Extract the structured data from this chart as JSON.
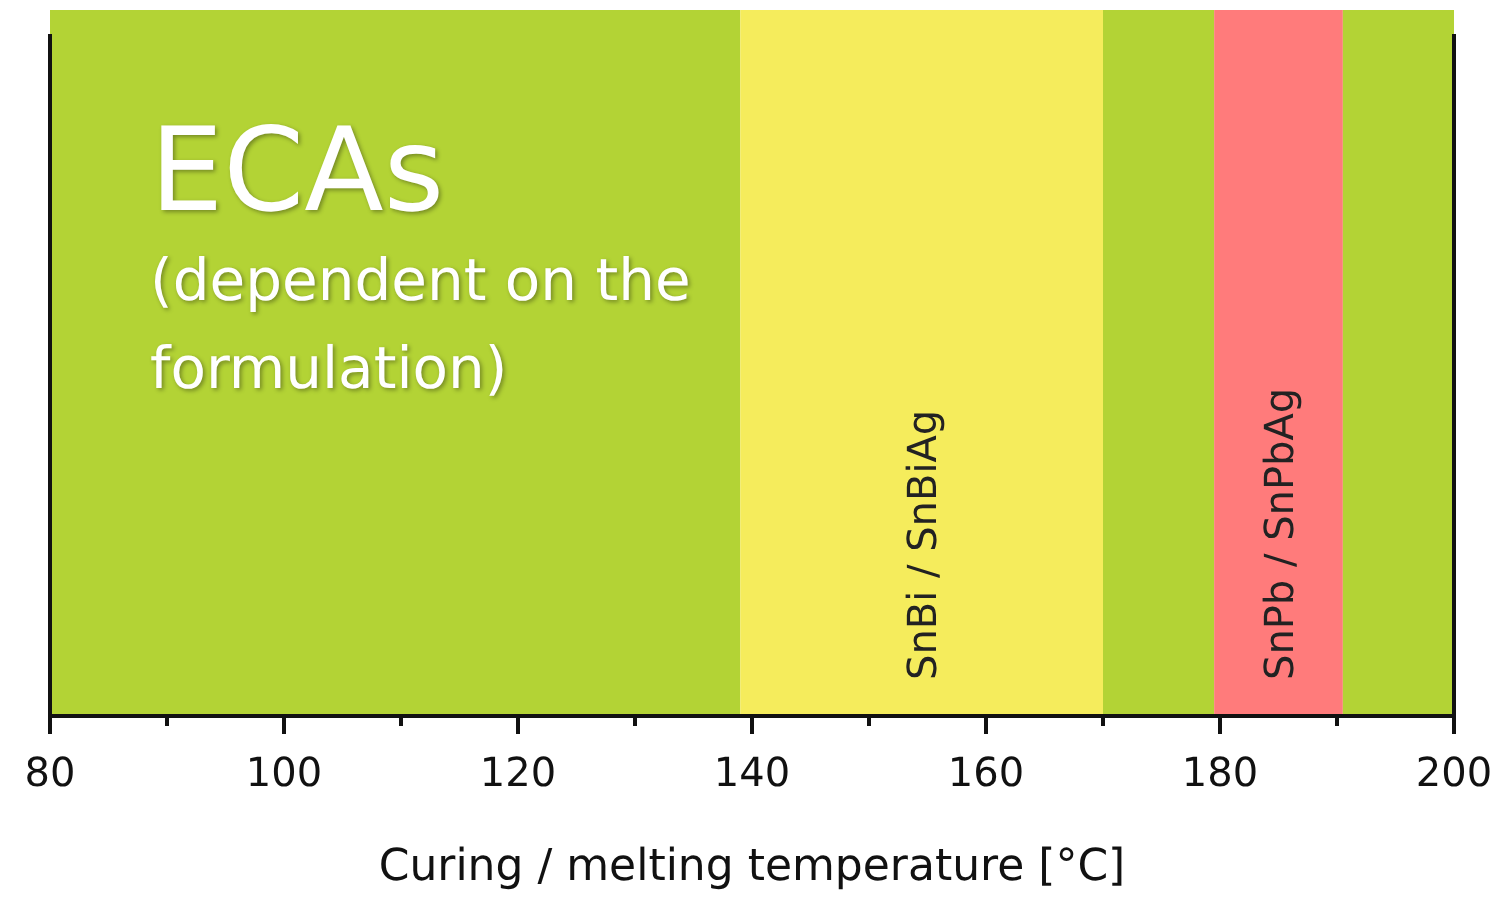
{
  "chart_data": {
    "type": "bar",
    "orientation": "horizontal",
    "categories": [
      null
    ],
    "xlabel": "Curing / melting temperature [°C]",
    "xlim": [
      80,
      200
    ],
    "xticks": [
      80,
      {
        "value": 90,
        "label": null
      },
      100,
      {
        "value": 110,
        "label": null
      },
      120,
      {
        "value": 130,
        "label": null
      },
      140,
      {
        "value": 150,
        "label": null
      },
      160,
      {
        "value": 170,
        "label": null
      },
      180,
      {
        "value": 190,
        "label": null
      },
      200
    ],
    "series": [
      {
        "name": "ECAs",
        "color": "#b3d335",
        "base": [
          80
        ],
        "values": [
          59
        ]
      },
      {
        "name": "SnBi / SnBiAg",
        "color": "#f5ec5c",
        "base": [
          139
        ],
        "values": [
          31
        ]
      },
      {
        "color": "#b3d335",
        "base": [
          170
        ],
        "values": [
          9.5
        ]
      },
      {
        "name": "SnPb / SnPbAg",
        "color": "#ff7b7b",
        "base": [
          179.5
        ],
        "values": [
          11
        ]
      },
      {
        "color": "#b3d335",
        "base": [
          190.5
        ],
        "values": [
          9.5
        ]
      }
    ],
    "annotations": [
      "(dependent on the formulation)"
    ]
  }
}
